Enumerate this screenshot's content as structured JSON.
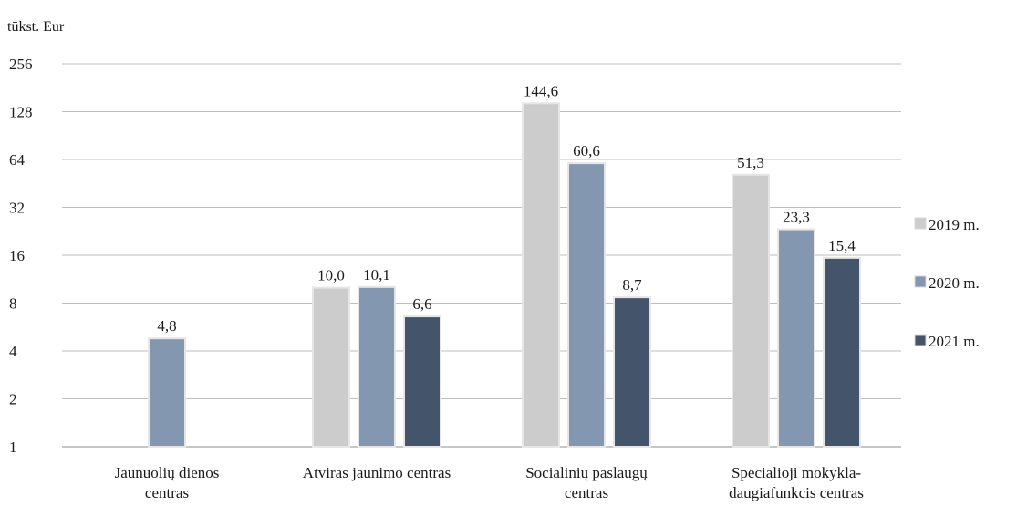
{
  "chart_data": {
    "type": "bar",
    "unit_label": "tūkst. Eur",
    "y_scale": "log2",
    "ylim": [
      1,
      256
    ],
    "y_ticks": [
      "1",
      "2",
      "4",
      "8",
      "16",
      "32",
      "64",
      "128",
      "256"
    ],
    "grid": true,
    "legend_position": "right",
    "categories": [
      [
        "Jaunuolių dienos",
        "centras"
      ],
      [
        "Atviras jaunimo centras"
      ],
      [
        "Socialinių paslaugų",
        "centras"
      ],
      [
        "Specialioji mokykla-",
        "daugiafunkcis centras"
      ]
    ],
    "series": [
      {
        "name": "2019 m.",
        "color": "#cccccc",
        "values": [
          null,
          10.0,
          144.6,
          51.3
        ],
        "labels": [
          null,
          "10,0",
          "144,6",
          "51,3"
        ]
      },
      {
        "name": "2020 m.",
        "color": "#8497b0",
        "values": [
          4.8,
          10.1,
          60.6,
          23.3
        ],
        "labels": [
          "4,8",
          "10,1",
          "60,6",
          "23,3"
        ]
      },
      {
        "name": "2021 m.",
        "color": "#44546a",
        "values": [
          null,
          6.6,
          8.7,
          15.4
        ],
        "labels": [
          null,
          "6,6",
          "8,7",
          "15,4"
        ]
      }
    ]
  }
}
